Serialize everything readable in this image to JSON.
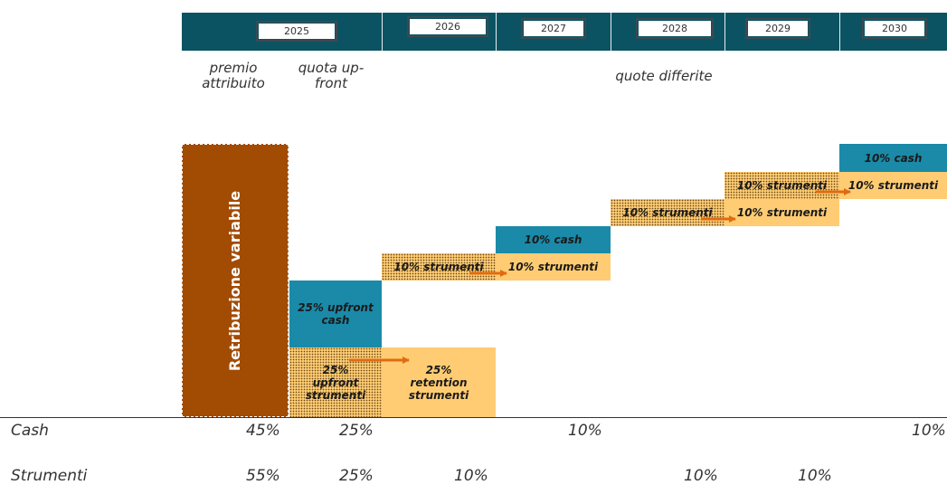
{
  "header": {
    "years": [
      "2025",
      "2026",
      "2027",
      "2028",
      "2029",
      "2030"
    ],
    "labels": {
      "premio": "premio attribuito",
      "upfront": "quota up-front",
      "differite": "quote differite"
    }
  },
  "diagram": {
    "main_bar": "Retribuzione variabile",
    "upfront_cash": "25% upfront cash",
    "upfront_strumenti": "25% upfront strumenti",
    "retention_strumenti": "25% retention strumenti",
    "strumenti_2027_dotted": "10% strumenti",
    "cash_2027": "10% cash",
    "strumenti_2027": "10% strumenti",
    "strumenti_2028_dotted": "10% strumenti",
    "strumenti_2029_dotted": "10% strumenti",
    "strumenti_2029": "10% strumenti",
    "cash_2030": "10% cash",
    "strumenti_2030": "10% strumenti"
  },
  "table": {
    "cash_label": "Cash",
    "strumenti_label": "Strumenti",
    "cash_values": [
      "45%",
      "25%",
      "10%",
      "10%"
    ],
    "strumenti_values": [
      "55%",
      "25%",
      "10%",
      "10%",
      "10%"
    ]
  },
  "colors": {
    "header": "#0b5363",
    "teal": "#1a8aa8",
    "light_orange": "#ffcc73",
    "brown": "#a24b03",
    "arrow": "#e06b10"
  }
}
